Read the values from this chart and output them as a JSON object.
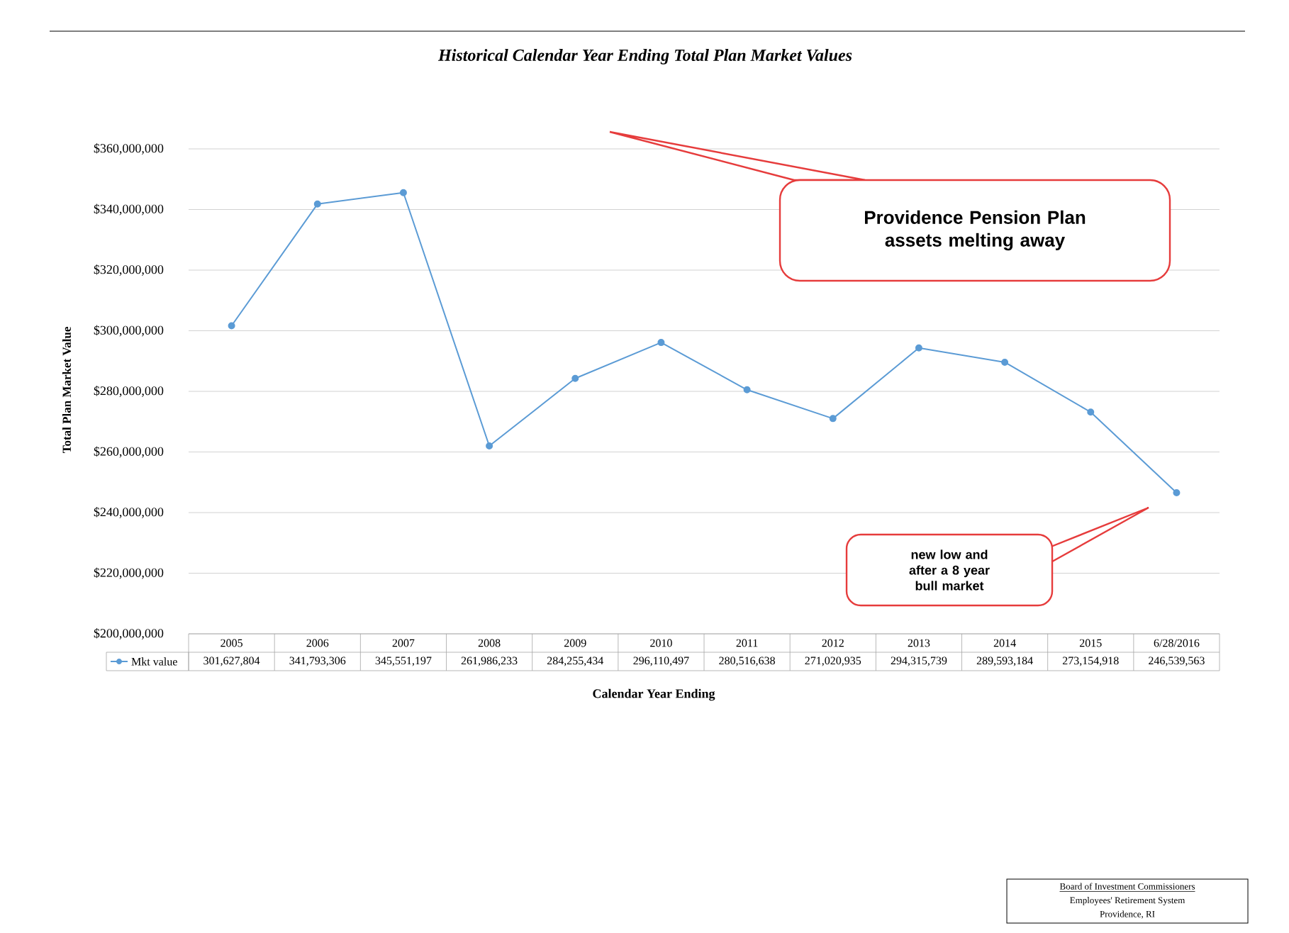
{
  "chart_data": {
    "type": "line",
    "title": "Historical Calendar Year Ending Total Plan Market Values",
    "xlabel": "Calendar Year Ending",
    "ylabel": "Total Plan Market Value",
    "categories": [
      "2005",
      "2006",
      "2007",
      "2008",
      "2009",
      "2010",
      "2011",
      "2012",
      "2013",
      "2014",
      "2015",
      "6/28/2016"
    ],
    "series": [
      {
        "name": "Mkt value",
        "color": "#5b9bd5",
        "values": [
          301627804,
          341793306,
          345551197,
          261986233,
          284255434,
          296110497,
          280516638,
          271020935,
          294315739,
          289593184,
          273154918,
          246539563
        ],
        "value_labels": [
          "301,627,804",
          "341,793,306",
          "345,551,197",
          "261,986,233",
          "284,255,434",
          "296,110,497",
          "280,516,638",
          "271,020,935",
          "294,315,739",
          "289,593,184",
          "273,154,918",
          "246,539,563"
        ]
      }
    ],
    "ylim": [
      200000000,
      360000000
    ],
    "yticks": [
      {
        "value": 200000000,
        "label": "$200,000,000"
      },
      {
        "value": 220000000,
        "label": "$220,000,000"
      },
      {
        "value": 240000000,
        "label": "$240,000,000"
      },
      {
        "value": 260000000,
        "label": "$260,000,000"
      },
      {
        "value": 280000000,
        "label": "$280,000,000"
      },
      {
        "value": 300000000,
        "label": "$300,000,000"
      },
      {
        "value": 320000000,
        "label": "$320,000,000"
      },
      {
        "value": 340000000,
        "label": "$340,000,000"
      },
      {
        "value": 360000000,
        "label": "$360,000,000"
      }
    ],
    "grid": "y",
    "marker": "circle",
    "line_style": "solid",
    "annotations": [
      "Providence Pension Plan assets melting away",
      "new low  and after a 8 year bull market",
      "Board of Investment Commissioners",
      "Employees' Retirement System",
      "Providence, RI"
    ]
  }
}
